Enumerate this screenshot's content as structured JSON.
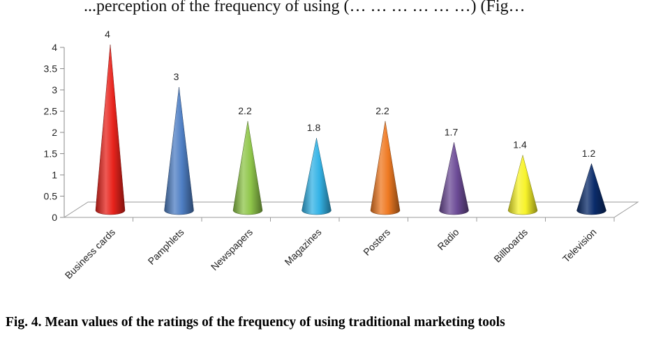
{
  "header_snippet": "...perception of the frequency of using (… … … … … …) (Fig…",
  "chart_data": {
    "type": "bar",
    "style": "3d-cone",
    "categories": [
      "Business cards",
      "Pamphlets",
      "Newspapers",
      "Magazines",
      "Posters",
      "Radio",
      "Billboards",
      "Television"
    ],
    "values": [
      4,
      3,
      2.2,
      1.8,
      2.2,
      1.7,
      1.4,
      1.2
    ],
    "value_labels": [
      "4",
      "3",
      "2.2",
      "1.8",
      "2.2",
      "1.7",
      "1.4",
      "1.2"
    ],
    "colors": [
      "#e8231c",
      "#4f7fc4",
      "#8fc64a",
      "#34b3e6",
      "#ef7a23",
      "#6d4c97",
      "#f7f32a",
      "#0b2c6b"
    ],
    "yticks": [
      "0",
      "0.5",
      "1",
      "1.5",
      "2",
      "2.5",
      "3",
      "3.5",
      "4"
    ],
    "ylim": [
      0,
      4
    ],
    "title": "",
    "xlabel": "",
    "ylabel": "",
    "grid": false,
    "legend": "none"
  },
  "caption": "Fig. 4. Mean values of the ratings of the frequency of using traditional marketing tools"
}
